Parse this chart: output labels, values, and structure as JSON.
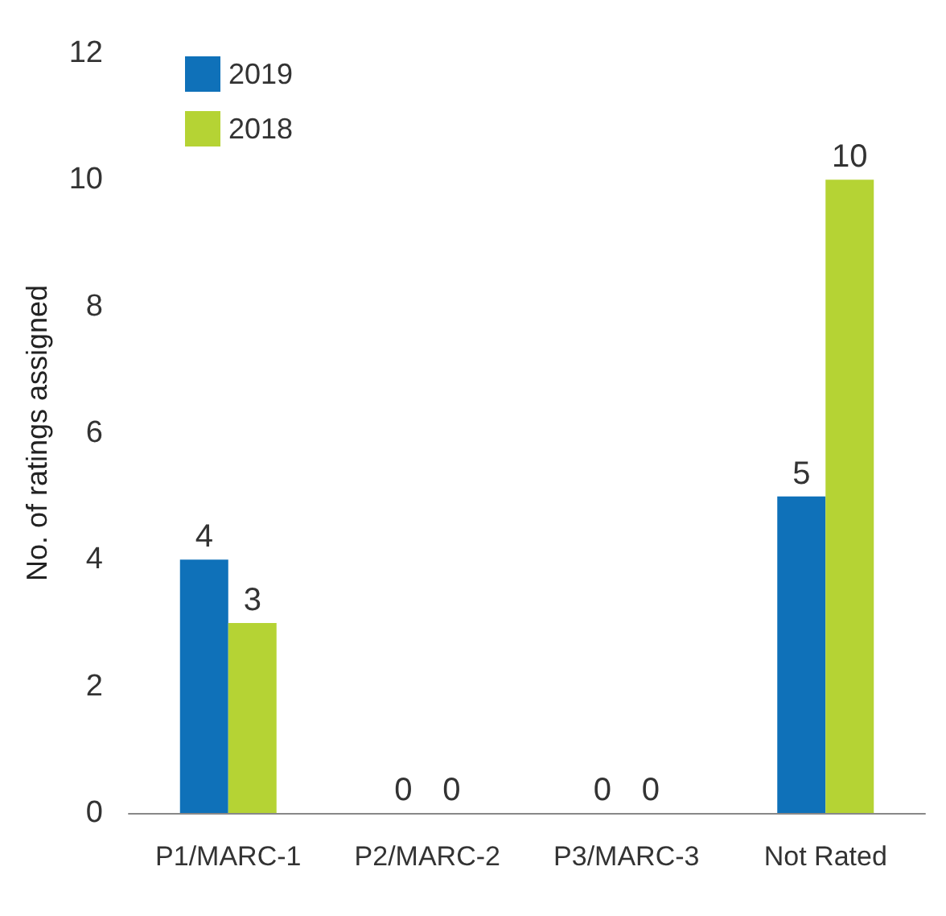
{
  "chart_data": {
    "type": "bar",
    "ylabel": "No. of ratings assigned",
    "categories": [
      "P1/MARC-1",
      "P2/MARC-2",
      "P3/MARC-3",
      "Not Rated"
    ],
    "series": [
      {
        "name": "2019",
        "color": "#0f71b9",
        "values": [
          4,
          0,
          0,
          5
        ]
      },
      {
        "name": "2018",
        "color": "#b5d334",
        "values": [
          3,
          0,
          0,
          10
        ]
      }
    ],
    "ylim": [
      0,
      12
    ],
    "yticks": [
      0,
      2,
      4,
      6,
      8,
      10,
      12
    ],
    "grid": false,
    "legend": "top left",
    "data_labels": true
  }
}
